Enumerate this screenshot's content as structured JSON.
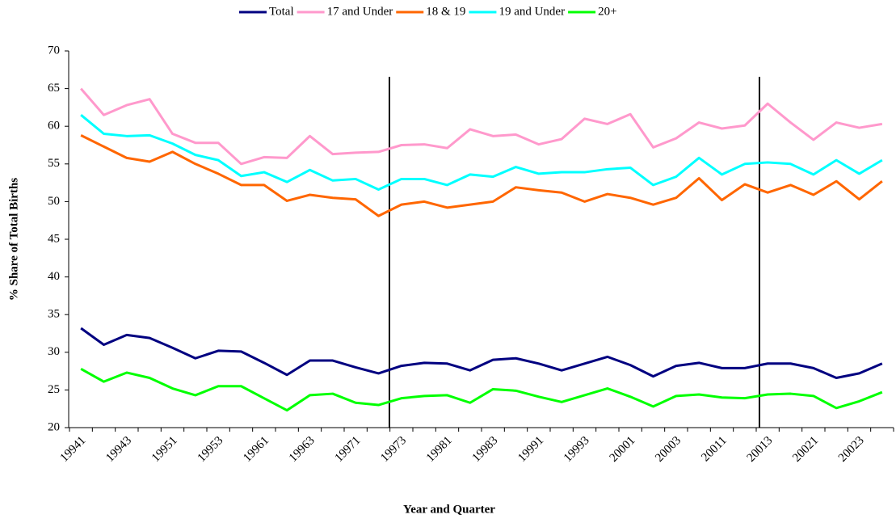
{
  "chart_data": {
    "type": "line",
    "x_label": "Year and Quarter",
    "y_label": "% Share of Total Births",
    "categories": [
      "19941",
      null,
      "19943",
      null,
      "19951",
      null,
      "19953",
      null,
      "19961",
      null,
      "19963",
      null,
      "19971",
      null,
      "19973",
      null,
      "19981",
      null,
      "19983",
      null,
      "19991",
      null,
      "19993",
      null,
      "20001",
      null,
      "20003",
      null,
      "20011",
      null,
      "20013",
      null,
      "20021",
      null,
      "20023",
      null
    ],
    "ylim": [
      20,
      70
    ],
    "yticks": [
      20,
      25,
      30,
      35,
      40,
      45,
      50,
      55,
      60,
      65,
      70
    ],
    "legend": "top",
    "series": [
      {
        "name": "Total",
        "color": "#000080",
        "values": [
          33.2,
          31,
          32.3,
          31.9,
          30.6,
          29.2,
          30.2,
          30.1,
          28.6,
          27,
          28.9,
          28.9,
          28,
          27.2,
          28.2,
          28.6,
          28.5,
          27.6,
          29,
          29.2,
          28.5,
          27.6,
          28.5,
          29.4,
          28.3,
          26.8,
          28.2,
          28.6,
          27.9,
          27.9,
          28.5,
          28.5,
          27.9,
          26.6,
          27.2,
          28.5
        ]
      },
      {
        "name": "17 and Under",
        "color": "#ff99cc",
        "values": [
          65,
          61.5,
          62.8,
          63.6,
          59,
          57.8,
          57.8,
          55,
          55.9,
          55.8,
          58.7,
          56.3,
          56.5,
          56.6,
          57.5,
          57.6,
          57.1,
          59.6,
          58.7,
          58.9,
          57.6,
          58.3,
          61,
          60.3,
          61.6,
          57.2,
          58.4,
          60.5,
          59.7,
          60.1,
          63,
          60.5,
          58.2,
          60.5,
          59.8,
          60.3
        ]
      },
      {
        "name": "18 & 19",
        "color": "#ff6600",
        "values": [
          58.8,
          57.3,
          55.8,
          55.3,
          56.6,
          55,
          53.7,
          52.2,
          52.2,
          50.1,
          50.9,
          50.5,
          50.3,
          48.1,
          49.6,
          50,
          49.2,
          49.6,
          50,
          51.9,
          51.5,
          51.2,
          50,
          51,
          50.5,
          49.6,
          50.5,
          53.1,
          50.2,
          52.3,
          51.2,
          52.2,
          50.9,
          52.7,
          50.3,
          52.7
        ]
      },
      {
        "name": "19 and Under",
        "color": "#00ffff",
        "values": [
          61.5,
          59,
          58.7,
          58.8,
          57.7,
          56.2,
          55.5,
          53.4,
          53.9,
          52.6,
          54.2,
          52.8,
          53,
          51.6,
          53,
          53,
          52.2,
          53.6,
          53.3,
          54.6,
          53.7,
          53.9,
          53.9,
          54.3,
          54.5,
          52.2,
          53.3,
          55.8,
          53.6,
          55,
          55.2,
          55,
          53.6,
          55.5,
          53.7,
          55.5
        ]
      },
      {
        "name": "20+",
        "color": "#00ff00",
        "values": [
          27.8,
          26.1,
          27.3,
          26.6,
          25.2,
          24.3,
          25.5,
          25.5,
          23.9,
          22.3,
          24.3,
          24.5,
          23.3,
          23,
          23.9,
          24.2,
          24.3,
          23.3,
          25.1,
          24.9,
          24.1,
          23.4,
          24.3,
          25.2,
          24.1,
          22.8,
          24.2,
          24.4,
          24,
          23.9,
          24.4,
          24.5,
          24.2,
          22.6,
          23.5,
          24.7
        ]
      }
    ]
  }
}
